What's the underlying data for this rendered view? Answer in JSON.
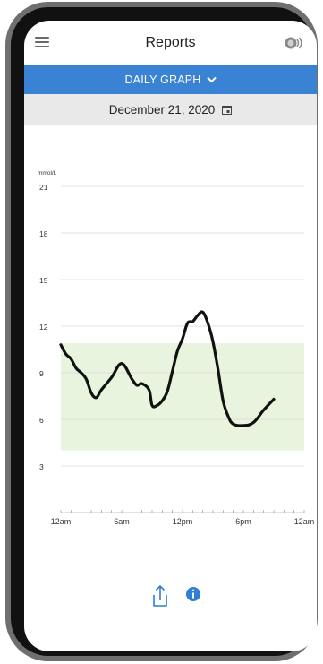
{
  "header": {
    "title": "Reports",
    "menu_icon": "hamburger-menu-icon",
    "sensor_icon": "sensor-icon"
  },
  "tabs": {
    "selected_label": "DAILY GRAPH",
    "chevron_icon": "chevron-down-icon"
  },
  "date_bar": {
    "date": "December 21, 2020",
    "calendar_icon": "calendar-icon"
  },
  "chart_data": {
    "type": "line",
    "ylabel": "mmol/L",
    "y_ticks": [
      21,
      18,
      15,
      12,
      9,
      6,
      3
    ],
    "ylim": [
      0,
      21
    ],
    "x_ticks": [
      "12am",
      "6am",
      "12pm",
      "6pm",
      "12am"
    ],
    "xlim": [
      0,
      24
    ],
    "target_range": [
      4.0,
      10.9
    ],
    "grid": true,
    "colors": {
      "line": "#111111",
      "target_band": "#e9f4df",
      "grid": "#d8d8d8"
    },
    "series": [
      {
        "points": [
          [
            0.0,
            10.8
          ],
          [
            0.5,
            10.2
          ],
          [
            1.0,
            9.9
          ],
          [
            1.5,
            9.3
          ],
          [
            2.0,
            9.0
          ],
          [
            2.5,
            8.6
          ],
          [
            3.0,
            7.7
          ],
          [
            3.5,
            7.4
          ],
          [
            4.0,
            7.9
          ],
          [
            5.0,
            8.7
          ],
          [
            6.0,
            9.6
          ],
          [
            7.0,
            8.6
          ],
          [
            7.5,
            8.2
          ],
          [
            8.0,
            8.3
          ],
          [
            8.7,
            7.9
          ],
          [
            9.0,
            6.9
          ],
          [
            9.5,
            6.9
          ],
          [
            10.0,
            7.2
          ],
          [
            10.5,
            7.8
          ],
          [
            11.0,
            9.1
          ],
          [
            11.5,
            10.4
          ],
          [
            12.0,
            11.2
          ],
          [
            12.5,
            12.2
          ],
          [
            13.0,
            12.3
          ],
          [
            13.5,
            12.7
          ],
          [
            14.0,
            12.9
          ],
          [
            14.5,
            12.2
          ],
          [
            15.0,
            11.0
          ],
          [
            15.5,
            9.2
          ],
          [
            16.0,
            7.2
          ],
          [
            16.5,
            6.2
          ],
          [
            17.0,
            5.7
          ],
          [
            18.0,
            5.6
          ],
          [
            19.0,
            5.8
          ],
          [
            20.0,
            6.6
          ],
          [
            21.0,
            7.3
          ]
        ]
      }
    ]
  },
  "footer": {
    "share_icon": "share-icon",
    "info_icon": "info-icon"
  }
}
